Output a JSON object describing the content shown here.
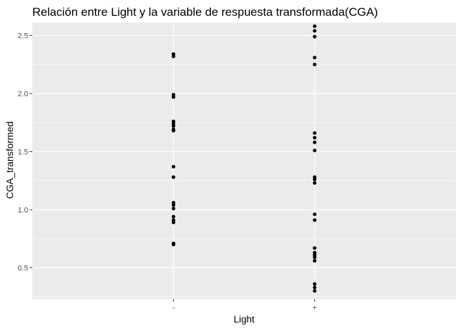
{
  "chart_data": {
    "type": "scatter",
    "title": "Relación entre Light y la variable de respuesta transformada(CGA)",
    "xlabel": "Light",
    "ylabel": "CGA_transformed",
    "categories": [
      "-",
      "+"
    ],
    "ylim": [
      0.23,
      2.61
    ],
    "yticks": [
      "0.5",
      "1.0",
      "1.5",
      "2.0",
      "2.5"
    ],
    "grid": true,
    "colors": {
      "panel": "#ebebeb",
      "grid": "#ffffff",
      "point": "#000000",
      "tick_text": "#4d4d4d"
    },
    "points": [
      {
        "x": "-",
        "y": 2.34
      },
      {
        "x": "-",
        "y": 2.32
      },
      {
        "x": "-",
        "y": 1.99
      },
      {
        "x": "-",
        "y": 1.97
      },
      {
        "x": "-",
        "y": 1.76
      },
      {
        "x": "-",
        "y": 1.74
      },
      {
        "x": "-",
        "y": 1.72
      },
      {
        "x": "-",
        "y": 1.69
      },
      {
        "x": "-",
        "y": 1.68
      },
      {
        "x": "-",
        "y": 1.37
      },
      {
        "x": "-",
        "y": 1.28
      },
      {
        "x": "-",
        "y": 1.06
      },
      {
        "x": "-",
        "y": 1.04
      },
      {
        "x": "-",
        "y": 1.01
      },
      {
        "x": "-",
        "y": 0.94
      },
      {
        "x": "-",
        "y": 0.91
      },
      {
        "x": "-",
        "y": 0.89
      },
      {
        "x": "-",
        "y": 0.71
      },
      {
        "x": "-",
        "y": 0.7
      },
      {
        "x": "+",
        "y": 2.58
      },
      {
        "x": "+",
        "y": 2.54
      },
      {
        "x": "+",
        "y": 2.49
      },
      {
        "x": "+",
        "y": 2.31
      },
      {
        "x": "+",
        "y": 2.25
      },
      {
        "x": "+",
        "y": 1.66
      },
      {
        "x": "+",
        "y": 1.62
      },
      {
        "x": "+",
        "y": 1.58
      },
      {
        "x": "+",
        "y": 1.51
      },
      {
        "x": "+",
        "y": 1.28
      },
      {
        "x": "+",
        "y": 1.26
      },
      {
        "x": "+",
        "y": 1.23
      },
      {
        "x": "+",
        "y": 0.96
      },
      {
        "x": "+",
        "y": 0.91
      },
      {
        "x": "+",
        "y": 0.67
      },
      {
        "x": "+",
        "y": 0.63
      },
      {
        "x": "+",
        "y": 0.61
      },
      {
        "x": "+",
        "y": 0.59
      },
      {
        "x": "+",
        "y": 0.56
      },
      {
        "x": "+",
        "y": 0.36
      },
      {
        "x": "+",
        "y": 0.33
      },
      {
        "x": "+",
        "y": 0.3
      }
    ]
  }
}
